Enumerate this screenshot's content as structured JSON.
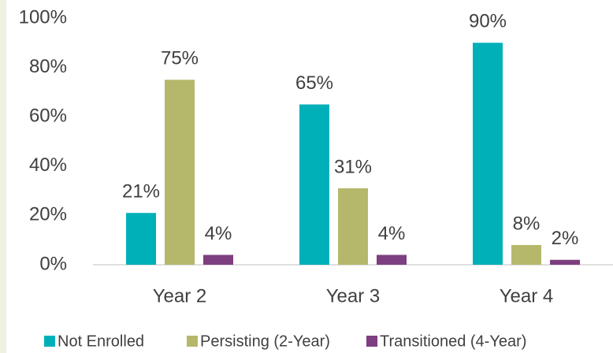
{
  "chart_data": {
    "type": "bar",
    "categories": [
      "Year 2",
      "Year 3",
      "Year 4"
    ],
    "series": [
      {
        "name": "Not Enrolled",
        "color": "#00b0b9",
        "values": [
          21,
          65,
          90
        ],
        "value_labels": [
          "21%",
          "65%",
          "90%"
        ]
      },
      {
        "name": "Persisting (2-Year)",
        "color": "#b5b86b",
        "values": [
          75,
          31,
          8
        ],
        "value_labels": [
          "75%",
          "31%",
          "8%"
        ]
      },
      {
        "name": "Transitioned (4-Year)",
        "color": "#7d3f80",
        "values": [
          4,
          4,
          2
        ],
        "value_labels": [
          "4%",
          "4%",
          "2%"
        ]
      }
    ],
    "ylim": [
      0,
      100
    ],
    "yticks": [
      {
        "value": 0,
        "label": "0%"
      },
      {
        "value": 20,
        "label": "20%"
      },
      {
        "value": 40,
        "label": "40%"
      },
      {
        "value": 60,
        "label": "60%"
      },
      {
        "value": 80,
        "label": "80%"
      },
      {
        "value": 100,
        "label": "100%"
      }
    ],
    "grid": false,
    "legend": "bottom"
  }
}
